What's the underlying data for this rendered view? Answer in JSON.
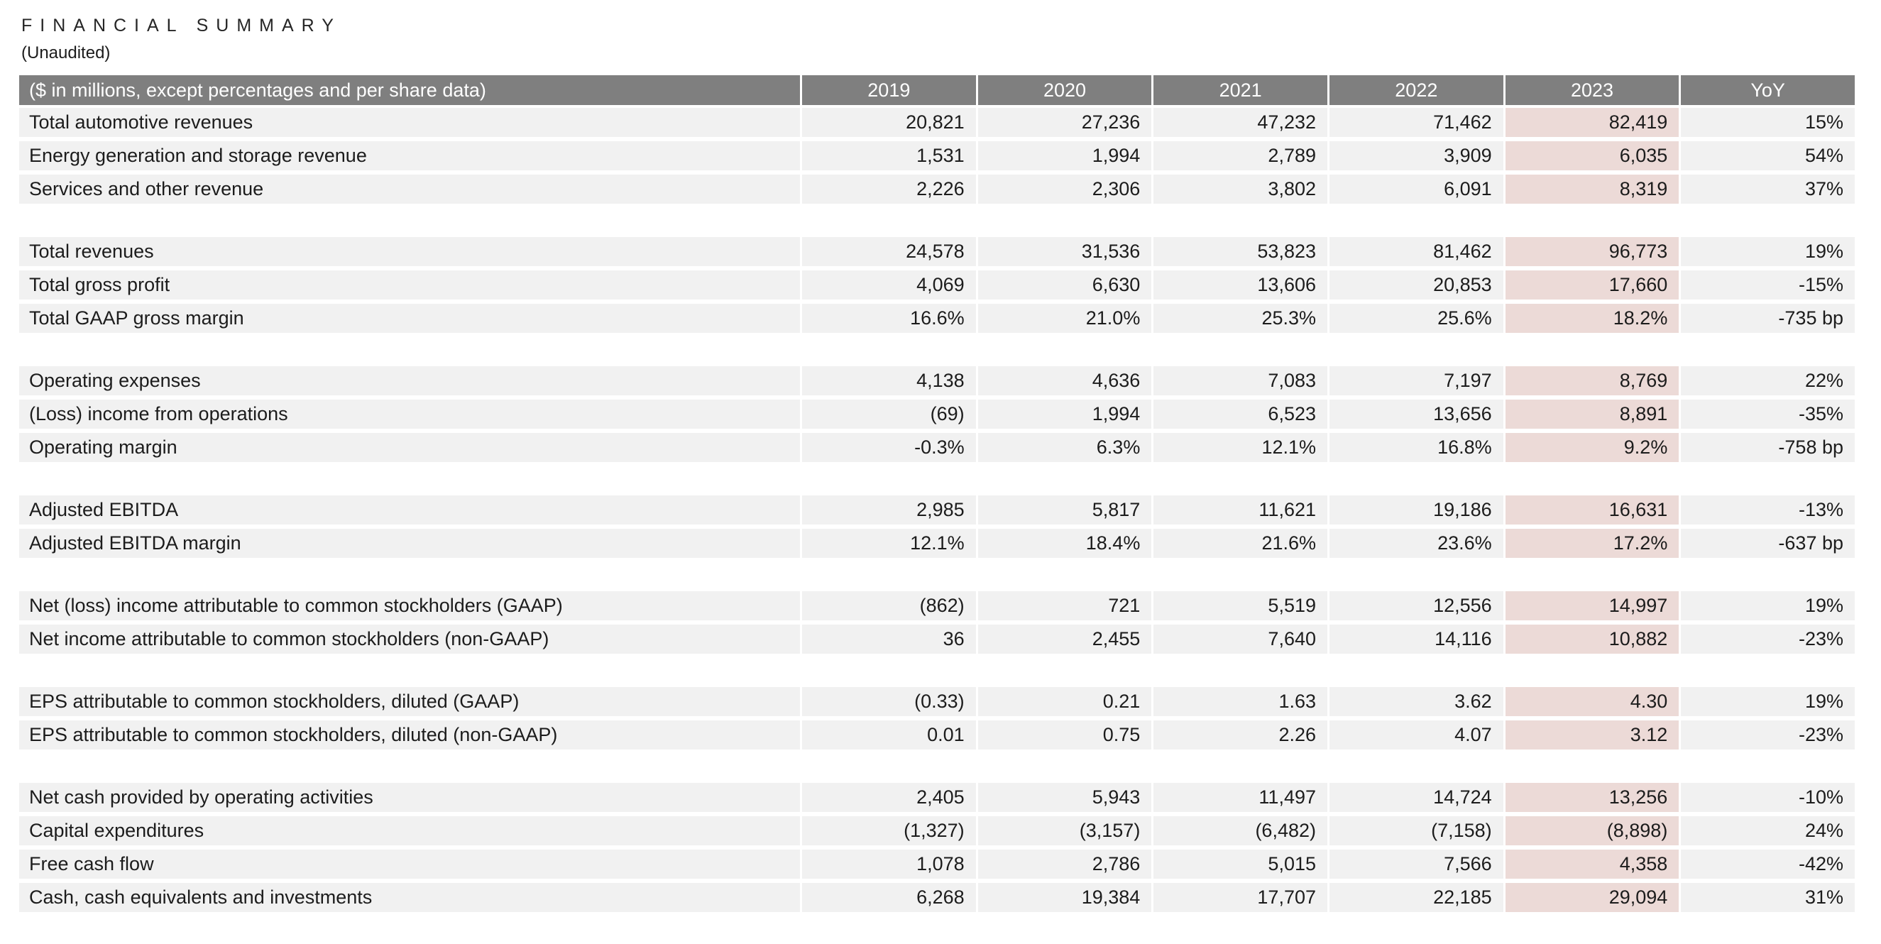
{
  "title": "FINANCIAL SUMMARY",
  "subtitle": "(Unaudited)",
  "colors": {
    "header_bg": "#7f7f7f",
    "header_text": "#ffffff",
    "row_bg": "#f1f1f1",
    "highlight_2023_bg": "#ecdad7",
    "text": "#1c1c1c"
  },
  "table": {
    "header": [
      "($ in millions, except percentages and per share data)",
      "2019",
      "2020",
      "2021",
      "2022",
      "2023",
      "YoY"
    ],
    "highlight_column": "2023",
    "groups": [
      {
        "rows": [
          {
            "label": "Total automotive revenues",
            "values": [
              "20,821",
              "27,236",
              "47,232",
              "71,462",
              "82,419"
            ],
            "yoy": "15%"
          },
          {
            "label": "Energy generation and storage revenue",
            "values": [
              "1,531",
              "1,994",
              "2,789",
              "3,909",
              "6,035"
            ],
            "yoy": "54%"
          },
          {
            "label": "Services and other revenue",
            "values": [
              "2,226",
              "2,306",
              "3,802",
              "6,091",
              "8,319"
            ],
            "yoy": "37%"
          }
        ]
      },
      {
        "rows": [
          {
            "label": "Total revenues",
            "values": [
              "24,578",
              "31,536",
              "53,823",
              "81,462",
              "96,773"
            ],
            "yoy": "19%"
          },
          {
            "label": "Total gross profit",
            "values": [
              "4,069",
              "6,630",
              "13,606",
              "20,853",
              "17,660"
            ],
            "yoy": "-15%"
          },
          {
            "label": "Total GAAP gross margin",
            "values": [
              "16.6%",
              "21.0%",
              "25.3%",
              "25.6%",
              "18.2%"
            ],
            "yoy": "-735 bp"
          }
        ]
      },
      {
        "rows": [
          {
            "label": "Operating expenses",
            "values": [
              "4,138",
              "4,636",
              "7,083",
              "7,197",
              "8,769"
            ],
            "yoy": "22%"
          },
          {
            "label": "(Loss) income from operations",
            "values": [
              "(69)",
              "1,994",
              "6,523",
              "13,656",
              "8,891"
            ],
            "yoy": "-35%"
          },
          {
            "label": "Operating margin",
            "values": [
              "-0.3%",
              "6.3%",
              "12.1%",
              "16.8%",
              "9.2%"
            ],
            "yoy": "-758 bp"
          }
        ]
      },
      {
        "rows": [
          {
            "label": "Adjusted EBITDA",
            "values": [
              "2,985",
              "5,817",
              "11,621",
              "19,186",
              "16,631"
            ],
            "yoy": "-13%"
          },
          {
            "label": "Adjusted EBITDA margin",
            "values": [
              "12.1%",
              "18.4%",
              "21.6%",
              "23.6%",
              "17.2%"
            ],
            "yoy": "-637 bp"
          }
        ]
      },
      {
        "rows": [
          {
            "label": "Net (loss) income attributable to common stockholders (GAAP)",
            "values": [
              "(862)",
              "721",
              "5,519",
              "12,556",
              "14,997"
            ],
            "yoy": "19%"
          },
          {
            "label": "Net income attributable to common stockholders (non-GAAP)",
            "values": [
              "36",
              "2,455",
              "7,640",
              "14,116",
              "10,882"
            ],
            "yoy": "-23%"
          }
        ]
      },
      {
        "rows": [
          {
            "label": "EPS attributable to common stockholders, diluted (GAAP)",
            "values": [
              "(0.33)",
              "0.21",
              "1.63",
              "3.62",
              "4.30"
            ],
            "yoy": "19%"
          },
          {
            "label": "EPS attributable to common stockholders, diluted (non-GAAP)",
            "values": [
              "0.01",
              "0.75",
              "2.26",
              "4.07",
              "3.12"
            ],
            "yoy": "-23%"
          }
        ]
      },
      {
        "rows": [
          {
            "label": "Net cash provided by operating activities",
            "values": [
              "2,405",
              "5,943",
              "11,497",
              "14,724",
              "13,256"
            ],
            "yoy": "-10%"
          },
          {
            "label": "Capital expenditures",
            "values": [
              "(1,327)",
              "(3,157)",
              "(6,482)",
              "(7,158)",
              "(8,898)"
            ],
            "yoy": "24%"
          },
          {
            "label": "Free cash flow",
            "values": [
              "1,078",
              "2,786",
              "5,015",
              "7,566",
              "4,358"
            ],
            "yoy": "-42%"
          },
          {
            "label": "Cash, cash equivalents and investments",
            "values": [
              "6,268",
              "19,384",
              "17,707",
              "22,185",
              "29,094"
            ],
            "yoy": "31%"
          }
        ]
      }
    ]
  }
}
